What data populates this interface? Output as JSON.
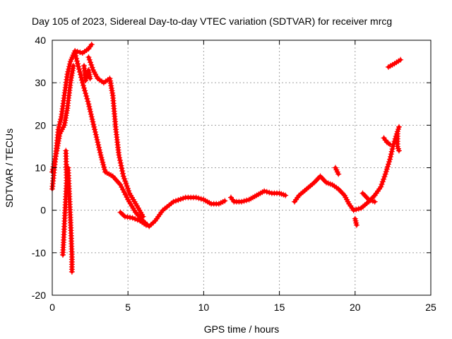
{
  "chart_data": {
    "type": "scatter",
    "title": "Day 105 of 2023, Sidereal Day-to-day VTEC variation (SDTVAR) for receiver mrcg",
    "xlabel": "GPS time / hours",
    "ylabel": "SDTVAR / TECUs",
    "xlim": [
      0,
      25
    ],
    "ylim": [
      -20,
      40
    ],
    "xticks": [
      "0",
      "5",
      "10",
      "15",
      "20",
      "25"
    ],
    "yticks": [
      "-20",
      "-10",
      "0",
      "10",
      "20",
      "30",
      "40"
    ],
    "grid": true,
    "marker": "+",
    "color": "#ff0000",
    "series": [
      {
        "name": "rise-left",
        "points": [
          [
            0,
            5
          ],
          [
            0.2,
            12
          ],
          [
            0.4,
            19
          ],
          [
            0.6,
            22
          ],
          [
            0.8,
            27
          ],
          [
            1.0,
            32
          ],
          [
            1.2,
            35
          ],
          [
            1.5,
            37.5
          ],
          [
            2.0,
            37
          ],
          [
            2.4,
            38
          ],
          [
            2.6,
            39
          ]
        ]
      },
      {
        "name": "rise-left-2",
        "points": [
          [
            0,
            9
          ],
          [
            0.3,
            14
          ],
          [
            0.5,
            18
          ],
          [
            0.8,
            20
          ],
          [
            1.0,
            24
          ],
          [
            1.2,
            30
          ],
          [
            1.4,
            34
          ]
        ]
      },
      {
        "name": "drop-a",
        "points": [
          [
            0.9,
            14
          ],
          [
            0.95,
            7
          ],
          [
            0.85,
            0
          ],
          [
            0.75,
            -7
          ],
          [
            0.7,
            -10.5
          ]
        ]
      },
      {
        "name": "drop-b",
        "points": [
          [
            1.05,
            10
          ],
          [
            1.15,
            2
          ],
          [
            1.25,
            -6
          ],
          [
            1.3,
            -11
          ],
          [
            1.3,
            -14.5
          ]
        ]
      },
      {
        "name": "main-descent",
        "points": [
          [
            1.5,
            37
          ],
          [
            2.0,
            30
          ],
          [
            2.4,
            25
          ],
          [
            2.8,
            19
          ],
          [
            3.2,
            13
          ],
          [
            3.5,
            9
          ],
          [
            4.0,
            8
          ],
          [
            4.5,
            6
          ],
          [
            5.0,
            2.5
          ],
          [
            5.5,
            -0.5
          ],
          [
            6.0,
            -2.5
          ],
          [
            6.4,
            -3.8
          ],
          [
            6.8,
            -2.5
          ],
          [
            7.3,
            0
          ],
          [
            8.0,
            2
          ],
          [
            8.8,
            3
          ],
          [
            9.5,
            3
          ],
          [
            10.0,
            2.5
          ],
          [
            10.5,
            1.5
          ],
          [
            11.0,
            1.5
          ],
          [
            11.4,
            2.2
          ]
        ]
      },
      {
        "name": "outer-descent",
        "points": [
          [
            2.4,
            36
          ],
          [
            2.7,
            33
          ],
          [
            3.0,
            31
          ],
          [
            3.4,
            30
          ],
          [
            3.8,
            31
          ],
          [
            4.0,
            27
          ],
          [
            4.2,
            19
          ],
          [
            4.4,
            13
          ],
          [
            4.7,
            8
          ],
          [
            5.1,
            4
          ],
          [
            5.6,
            1
          ],
          [
            6.0,
            -1.5
          ]
        ]
      },
      {
        "name": "spikes",
        "points": [
          [
            2.1,
            34
          ],
          [
            2.2,
            30.5
          ],
          [
            2.4,
            33
          ],
          [
            2.5,
            31
          ]
        ]
      },
      {
        "name": "low-segment",
        "points": [
          [
            4.5,
            -0.5
          ],
          [
            4.8,
            -1.5
          ],
          [
            5.3,
            -1.8
          ],
          [
            5.8,
            -2.5
          ],
          [
            6.2,
            -3.5
          ]
        ]
      },
      {
        "name": "mid-segment",
        "points": [
          [
            11.8,
            3
          ],
          [
            12.0,
            2
          ],
          [
            12.5,
            2
          ],
          [
            13.0,
            2.5
          ],
          [
            13.5,
            3.5
          ],
          [
            14.0,
            4.5
          ],
          [
            14.5,
            4
          ],
          [
            15.0,
            4
          ],
          [
            15.4,
            3.5
          ]
        ]
      },
      {
        "name": "hump",
        "points": [
          [
            16.0,
            2
          ],
          [
            16.3,
            3.5
          ],
          [
            16.8,
            5
          ],
          [
            17.3,
            6.5
          ],
          [
            17.7,
            8
          ],
          [
            18.1,
            6.5
          ],
          [
            18.5,
            6
          ],
          [
            18.9,
            5
          ],
          [
            19.3,
            3.5
          ],
          [
            19.6,
            1.5
          ],
          [
            19.9,
            0
          ]
        ]
      },
      {
        "name": "hump-small",
        "points": [
          [
            18.7,
            10
          ],
          [
            18.9,
            8.5
          ]
        ]
      },
      {
        "name": "dip",
        "points": [
          [
            20.0,
            -2
          ],
          [
            20.1,
            -3.5
          ]
        ]
      },
      {
        "name": "hook",
        "points": [
          [
            19.9,
            0
          ],
          [
            20.4,
            0.5
          ],
          [
            20.9,
            2
          ],
          [
            21.3,
            3.5
          ],
          [
            21.7,
            5.5
          ],
          [
            22.0,
            8.5
          ],
          [
            22.3,
            12
          ],
          [
            22.5,
            15
          ],
          [
            22.7,
            17.4
          ],
          [
            22.9,
            19.6
          ]
        ]
      },
      {
        "name": "hook-inner",
        "points": [
          [
            20.5,
            4
          ],
          [
            20.9,
            2.5
          ],
          [
            21.3,
            2
          ]
        ]
      },
      {
        "name": "hook-tail",
        "points": [
          [
            22.8,
            18
          ],
          [
            22.8,
            15
          ],
          [
            22.9,
            14
          ]
        ]
      },
      {
        "name": "hook-blob",
        "points": [
          [
            21.9,
            17
          ],
          [
            22.1,
            16
          ],
          [
            22.3,
            15.5
          ]
        ]
      },
      {
        "name": "top-right",
        "points": [
          [
            22.2,
            33.7
          ],
          [
            22.6,
            34.5
          ],
          [
            23.0,
            35.4
          ]
        ]
      }
    ]
  }
}
